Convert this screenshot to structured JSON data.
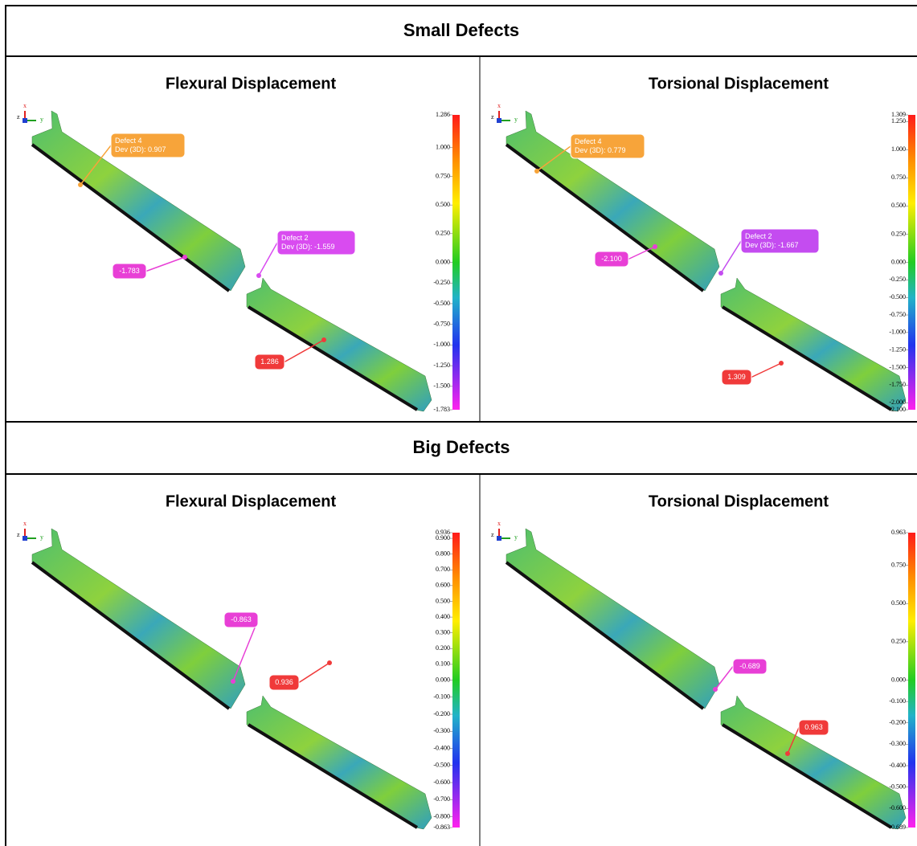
{
  "axis_labels": [
    "x",
    "y",
    "z"
  ],
  "sections": [
    {
      "title": "Small Defects",
      "panels": [
        {
          "title": "Flexural Displacement",
          "callouts": [
            {
              "lines": [
                "Defect 4",
                "Dev (3D):  0.907"
              ],
              "color": "#f7a43a"
            },
            {
              "lines": [
                "Defect 2",
                "Dev (3D):  -1.559"
              ],
              "color": "#d94bf0"
            },
            {
              "lines": [
                "-1.783"
              ],
              "color": "#e83fd6"
            },
            {
              "lines": [
                "1.286"
              ],
              "color": "#f03a3a"
            }
          ],
          "scale": [
            "1.286",
            "1.000",
            "0.750",
            "0.500",
            "0.250",
            "0.000",
            "-0.250",
            "-0.500",
            "-0.750",
            "-1.000",
            "-1.250",
            "-1.500",
            "-1.783"
          ]
        },
        {
          "title": "Torsional Displacement",
          "callouts": [
            {
              "lines": [
                "Defect 4",
                "Dev (3D):  0.779"
              ],
              "color": "#f7a43a"
            },
            {
              "lines": [
                "-2.100"
              ],
              "color": "#e83fd6"
            },
            {
              "lines": [
                "Defect 2",
                "Dev (3D):  -1.667"
              ],
              "color": "#c44cf0"
            },
            {
              "lines": [
                "1.309"
              ],
              "color": "#f03a3a"
            }
          ],
          "scale": [
            "1.309",
            "1.250",
            "1.000",
            "0.750",
            "0.500",
            "0.250",
            "0.000",
            "-0.250",
            "-0.500",
            "-0.750",
            "-1.000",
            "-1.250",
            "-1.500",
            "-1.750",
            "-2.000",
            "-2.100"
          ]
        }
      ]
    },
    {
      "title": "Big Defects",
      "panels": [
        {
          "title": "Flexural Displacement",
          "callouts": [
            {
              "lines": [
                "-0.863"
              ],
              "color": "#e83fd6"
            },
            {
              "lines": [
                "0.936"
              ],
              "color": "#f03a3a"
            }
          ],
          "scale": [
            "0.936",
            "0.900",
            "0.800",
            "0.700",
            "0.600",
            "0.500",
            "0.400",
            "0.300",
            "0.200",
            "0.100",
            "0.000",
            "-0.100",
            "-0.200",
            "-0.300",
            "-0.400",
            "-0.500",
            "-0.600",
            "-0.700",
            "-0.800",
            "-0.863"
          ]
        },
        {
          "title": "Torsional Displacement",
          "callouts": [
            {
              "lines": [
                "-0.689"
              ],
              "color": "#e83fd6"
            },
            {
              "lines": [
                "0.963"
              ],
              "color": "#f03a3a"
            }
          ],
          "scale": [
            "0.963",
            "0.750",
            "0.500",
            "0.250",
            "0.000",
            "-0.100",
            "-0.200",
            "-0.300",
            "-0.400",
            "-0.500",
            "-0.600",
            "-0.689"
          ]
        }
      ]
    }
  ]
}
